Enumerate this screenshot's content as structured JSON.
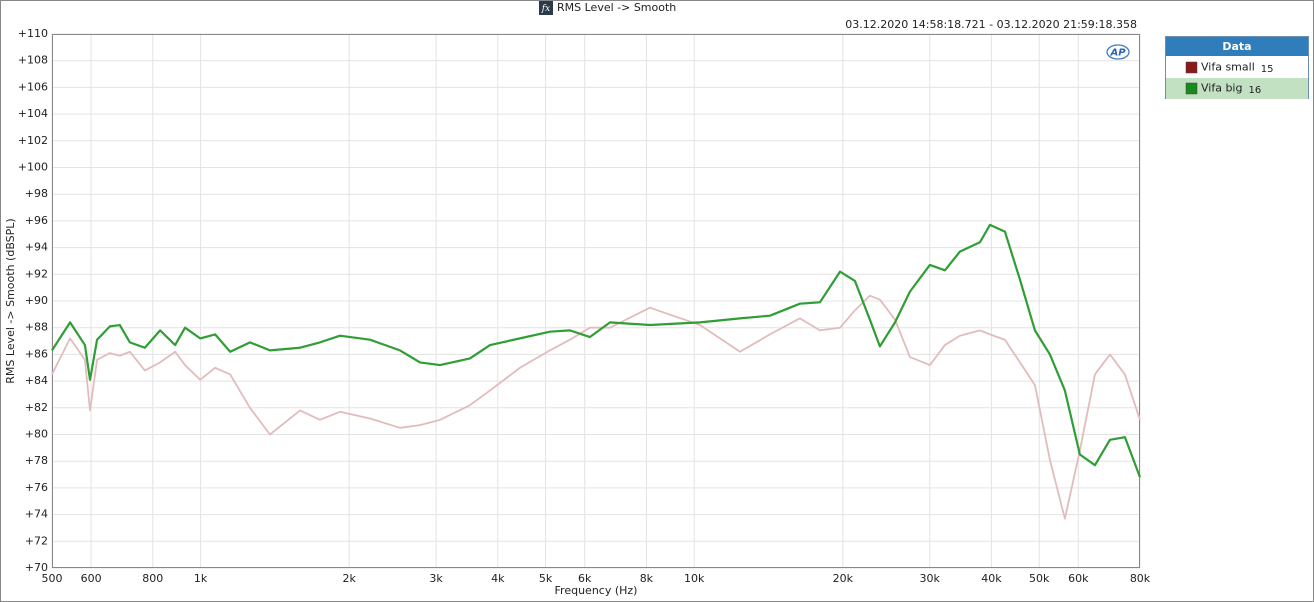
{
  "chart_data": {
    "type": "line",
    "title": "RMS Level -> Smooth",
    "title_icon": "fx",
    "subtitle": "03.12.2020 14:58:18.721 - 03.12.2020 21:59:18.358",
    "logo": "AP",
    "x_label": "Frequency (Hz)",
    "y_label": "RMS Level -> Smooth (dBSPL)",
    "x_scale": "log",
    "grid": true,
    "legend_title": "Data",
    "legend_position": "right",
    "x": [
      500,
      544,
      583,
      597,
      617,
      655,
      686,
      719,
      771,
      828,
      888,
      930,
      998,
      1070,
      1148,
      1259,
      1382,
      1590,
      1745,
      1916,
      2204,
      2535,
      2783,
      3055,
      3513,
      3858,
      4436,
      5101,
      5600,
      6148,
      6751,
      8134,
      10270,
      12381,
      14236,
      16373,
      17975,
      19741,
      21165,
      22694,
      23778,
      25515,
      27352,
      30020,
      32206,
      34535,
      37917,
      39724,
      42600,
      45700,
      49000,
      52550,
      56350,
      60430,
      64830,
      69530,
      74560,
      80000
    ],
    "series": [
      {
        "name": "Vifa small",
        "id": 15,
        "color": "#8b1a1a",
        "line_color": "#e2bcbc",
        "highlighted": false,
        "values": [
          84.5,
          87.2,
          85.6,
          81.8,
          85.6,
          86.1,
          85.9,
          86.2,
          84.8,
          85.4,
          86.2,
          85.2,
          84.1,
          85.0,
          84.5,
          82.0,
          80.0,
          81.8,
          81.1,
          81.7,
          81.2,
          80.5,
          80.7,
          81.1,
          82.2,
          83.3,
          85.0,
          86.3,
          87.1,
          88.0,
          88.0,
          89.5,
          88.2,
          86.2,
          87.5,
          88.7,
          87.8,
          88.0,
          89.3,
          90.4,
          90.1,
          88.6,
          85.8,
          85.2,
          86.7,
          87.4,
          87.8,
          87.5,
          87.1,
          85.4,
          83.7,
          78.1,
          73.7,
          78.8,
          84.5,
          86.0,
          84.5,
          81.1
        ]
      },
      {
        "name": "Vifa big",
        "id": 16,
        "color": "#1a8a1a",
        "line_color": "#2f9e35",
        "highlighted": true,
        "values": [
          86.3,
          88.4,
          86.7,
          84.1,
          87.1,
          88.1,
          88.2,
          86.9,
          86.5,
          87.8,
          86.7,
          88.0,
          87.2,
          87.5,
          86.2,
          86.9,
          86.3,
          86.5,
          86.9,
          87.4,
          87.1,
          86.3,
          85.4,
          85.2,
          85.7,
          86.7,
          87.2,
          87.7,
          87.8,
          87.3,
          88.4,
          88.2,
          88.4,
          88.7,
          88.9,
          89.8,
          89.9,
          92.2,
          91.5,
          88.6,
          86.6,
          88.4,
          90.7,
          92.7,
          92.3,
          93.7,
          94.4,
          95.7,
          95.2,
          91.6,
          87.8,
          86.0,
          83.3,
          78.5,
          77.7,
          79.6,
          79.8,
          76.8
        ]
      }
    ],
    "xlim": [
      500,
      80000
    ],
    "xticks": [
      500,
      600,
      800,
      {
        "value": 1000,
        "label": "1k"
      },
      {
        "value": 2000,
        "label": "2k"
      },
      {
        "value": 3000,
        "label": "3k"
      },
      {
        "value": 4000,
        "label": "4k"
      },
      {
        "value": 5000,
        "label": "5k"
      },
      {
        "value": 6000,
        "label": "6k"
      },
      {
        "value": 8000,
        "label": "8k"
      },
      {
        "value": 10000,
        "label": "10k"
      },
      {
        "value": 20000,
        "label": "20k"
      },
      {
        "value": 30000,
        "label": "30k"
      },
      {
        "value": 40000,
        "label": "40k"
      },
      {
        "value": 50000,
        "label": "50k"
      },
      {
        "value": 60000,
        "label": "60k"
      },
      {
        "value": 80000,
        "label": "80k"
      }
    ],
    "ylim": [
      70,
      110
    ],
    "yticks": [
      {
        "value": 70,
        "label": "+70"
      },
      {
        "value": 72,
        "label": "+72"
      },
      {
        "value": 74,
        "label": "+74"
      },
      {
        "value": 76,
        "label": "+76"
      },
      {
        "value": 78,
        "label": "+78"
      },
      {
        "value": 80,
        "label": "+80"
      },
      {
        "value": 82,
        "label": "+82"
      },
      {
        "value": 84,
        "label": "+84"
      },
      {
        "value": 86,
        "label": "+86"
      },
      {
        "value": 88,
        "label": "+88"
      },
      {
        "value": 90,
        "label": "+90"
      },
      {
        "value": 92,
        "label": "+92"
      },
      {
        "value": 94,
        "label": "+94"
      },
      {
        "value": 96,
        "label": "+96"
      },
      {
        "value": 98,
        "label": "+98"
      },
      {
        "value": 100,
        "label": "+100"
      },
      {
        "value": 102,
        "label": "+102"
      },
      {
        "value": 104,
        "label": "+104"
      },
      {
        "value": 106,
        "label": "+106"
      },
      {
        "value": 108,
        "label": "+108"
      },
      {
        "value": 110,
        "label": "+110"
      }
    ]
  }
}
